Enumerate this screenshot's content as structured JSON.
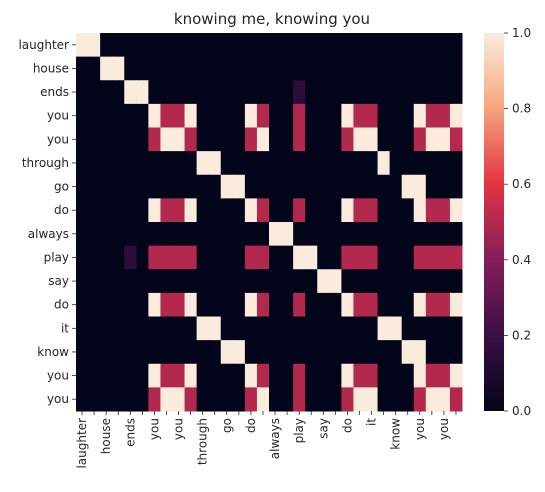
{
  "chart_data": {
    "type": "heatmap",
    "title": "knowing me, knowing you",
    "xlabel": "",
    "ylabel": "",
    "row_labels": [
      "laughter",
      "house",
      "ends",
      "you",
      "you",
      "through",
      "go",
      "do",
      "always",
      "play",
      "say",
      "do",
      "it",
      "know",
      "you",
      "you"
    ],
    "col_labels": [
      "laughter",
      "",
      "house",
      "",
      "ends",
      "",
      "you",
      "",
      "you",
      "",
      "through",
      "",
      "go",
      "",
      "do",
      "",
      "always",
      "",
      "play",
      "",
      "say",
      "",
      "do",
      "",
      "it",
      "",
      "know",
      "",
      "you",
      "",
      "you",
      ""
    ],
    "colorbar": {
      "min": 0.0,
      "max": 1.0,
      "ticks": [
        "0.0",
        "0.2",
        "0.4",
        "0.6",
        "0.8",
        "1.0"
      ]
    },
    "grid": false,
    "colors": {
      "low": "#03051a",
      "mid": "#e13342",
      "high": "#faebdd"
    },
    "values": [
      [
        1,
        1,
        0,
        0,
        0,
        0,
        0,
        0,
        0,
        0,
        0,
        0,
        0,
        0,
        0,
        0,
        0,
        0,
        0,
        0,
        0,
        0,
        0,
        0,
        0,
        0,
        0,
        0,
        0,
        0,
        0,
        0
      ],
      [
        0,
        0,
        1,
        1,
        0,
        0,
        0,
        0,
        0,
        0,
        0,
        0,
        0,
        0,
        0,
        0,
        0,
        0,
        0,
        0,
        0,
        0,
        0,
        0,
        0,
        0,
        0,
        0,
        0,
        0,
        0,
        0
      ],
      [
        0,
        0,
        0,
        0,
        1,
        1,
        0,
        0,
        0,
        0,
        0,
        0,
        0,
        0,
        0,
        0,
        0,
        0,
        0.15,
        0,
        0,
        0,
        0,
        0,
        0,
        0,
        0,
        0,
        0,
        0,
        0,
        0
      ],
      [
        0,
        0,
        0,
        0,
        0,
        0,
        1,
        0.5,
        0.5,
        1,
        0,
        0,
        0,
        0,
        1,
        0.5,
        0,
        0,
        0.5,
        0,
        0,
        0,
        1,
        0.5,
        0.5,
        0,
        0,
        0,
        1,
        0.5,
        0.5,
        1
      ],
      [
        0,
        0,
        0,
        0,
        0,
        0,
        0.5,
        1,
        1,
        0.5,
        0,
        0,
        0,
        0,
        0.5,
        1,
        0,
        0,
        0.5,
        0,
        0,
        0,
        0.5,
        1,
        1,
        0,
        0,
        0,
        0.5,
        1,
        1,
        0.5
      ],
      [
        0,
        0,
        0,
        0,
        0,
        0,
        0,
        0,
        0,
        0,
        1,
        1,
        0,
        0,
        0,
        0,
        0,
        0,
        0,
        0,
        0,
        0,
        0,
        0,
        0,
        1,
        0,
        0,
        0,
        0,
        0,
        0
      ],
      [
        0,
        0,
        0,
        0,
        0,
        0,
        0,
        0,
        0,
        0,
        0,
        0,
        1,
        1,
        0,
        0,
        0,
        0,
        0,
        0,
        0,
        0,
        0,
        0,
        0,
        0,
        0,
        1,
        1,
        0,
        0,
        0
      ],
      [
        0,
        0,
        0,
        0,
        0,
        0,
        1,
        0.5,
        0.5,
        1,
        0,
        0,
        0,
        0,
        1,
        0.5,
        0,
        0,
        0.5,
        0,
        0,
        0,
        1,
        0.5,
        0.5,
        0,
        0,
        0,
        1,
        0.5,
        0.5,
        1
      ],
      [
        0,
        0,
        0,
        0,
        0,
        0,
        0,
        0,
        0,
        0,
        0,
        0,
        0,
        0,
        0,
        0,
        1,
        1,
        0,
        0,
        0,
        0,
        0,
        0,
        0,
        0,
        0,
        0,
        0,
        0,
        0,
        0
      ],
      [
        0,
        0,
        0,
        0,
        0.15,
        0,
        0.5,
        0.5,
        0.5,
        0.5,
        0,
        0,
        0,
        0,
        0.5,
        0.5,
        0,
        0,
        1,
        1,
        0,
        0,
        0.5,
        0.5,
        0.5,
        0,
        0,
        0,
        0.5,
        0.5,
        0.5,
        0.5
      ],
      [
        0,
        0,
        0,
        0,
        0,
        0,
        0,
        0,
        0,
        0,
        0,
        0,
        0,
        0,
        0,
        0,
        0,
        0,
        0,
        0,
        1,
        1,
        0,
        0,
        0,
        0,
        0,
        0,
        0,
        0,
        0,
        0
      ],
      [
        0,
        0,
        0,
        0,
        0,
        0,
        1,
        0.5,
        0.5,
        1,
        0,
        0,
        0,
        0,
        1,
        0.5,
        0,
        0,
        0.5,
        0,
        0,
        0,
        1,
        0.5,
        0.5,
        0,
        0,
        0,
        1,
        0.5,
        0.5,
        1
      ],
      [
        0,
        0,
        0,
        0,
        0,
        0,
        0,
        0,
        0,
        0,
        1,
        1,
        0,
        0,
        0,
        0,
        0,
        0,
        0,
        0,
        0,
        0,
        0,
        0,
        0,
        1,
        1,
        0,
        0,
        0,
        0,
        0
      ],
      [
        0,
        0,
        0,
        0,
        0,
        0,
        0,
        0,
        0,
        0,
        0,
        0,
        1,
        1,
        0,
        0,
        0,
        0,
        0,
        0,
        0,
        0,
        0,
        0,
        0,
        0,
        0,
        1,
        1,
        0,
        0,
        0
      ],
      [
        0,
        0,
        0,
        0,
        0,
        0,
        1,
        0.5,
        0.5,
        1,
        0,
        0,
        0,
        0,
        1,
        0.5,
        0,
        0,
        0.5,
        0,
        0,
        0,
        1,
        0.5,
        0.5,
        0,
        0,
        0,
        1,
        0.5,
        0.5,
        1
      ],
      [
        0,
        0,
        0,
        0,
        0,
        0,
        0.5,
        1,
        1,
        0.5,
        0,
        0,
        0,
        0,
        0.5,
        1,
        0,
        0,
        0.5,
        0,
        0,
        0,
        0.5,
        1,
        1,
        0,
        0,
        0,
        0.5,
        1,
        1,
        0.5
      ]
    ]
  }
}
